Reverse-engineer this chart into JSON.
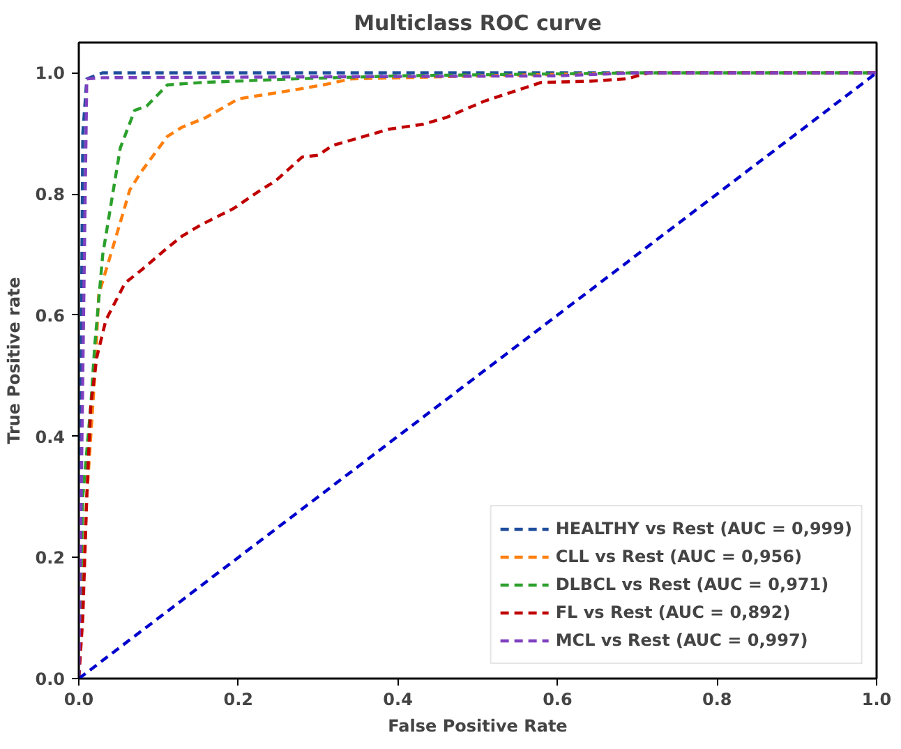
{
  "chart_data": {
    "type": "line",
    "title": "Multiclass ROC curve",
    "xlabel": "False Positive Rate",
    "ylabel": "True Positive rate",
    "xlim": [
      0,
      1
    ],
    "ylim": [
      0,
      1.05
    ],
    "xticks": [
      {
        "value": 0,
        "label": "0.0"
      },
      {
        "value": 0.2,
        "label": "0.2"
      },
      {
        "value": 0.4,
        "label": "0.4"
      },
      {
        "value": 0.6,
        "label": "0.6"
      },
      {
        "value": 0.8,
        "label": "0.8"
      },
      {
        "value": 1,
        "label": "1.0"
      }
    ],
    "yticks": [
      {
        "value": 0,
        "label": "0.0"
      },
      {
        "value": 0.2,
        "label": "0.2"
      },
      {
        "value": 0.4,
        "label": "0.4"
      },
      {
        "value": 0.6,
        "label": "0.6"
      },
      {
        "value": 0.8,
        "label": "0.8"
      },
      {
        "value": 1,
        "label": "1.0"
      }
    ],
    "grid": false,
    "legend": "bottom right",
    "line_style": "dashed",
    "marker": "none",
    "series": [
      {
        "name": "HEALTHY vs Rest (AUC = 0,999)",
        "color": "#1f4e9c",
        "x": [
          0,
          0.005,
          0.01,
          0.03,
          1
        ],
        "values": [
          0,
          0.9,
          0.99,
          1.0,
          1.0
        ]
      },
      {
        "name": "CLL vs Rest (AUC = 0,956)",
        "color": "#ff7f0e",
        "x": [
          0,
          0.01,
          0.02,
          0.025,
          0.052,
          0.064,
          0.079,
          0.111,
          0.129,
          0.159,
          0.2,
          0.271,
          0.306,
          0.342,
          0.5,
          0.7,
          1
        ],
        "values": [
          0,
          0.3,
          0.5,
          0.634,
          0.753,
          0.807,
          0.838,
          0.895,
          0.91,
          0.926,
          0.957,
          0.972,
          0.98,
          0.99,
          0.995,
          1.0,
          1.0
        ]
      },
      {
        "name": "DLBCL vs Rest (AUC = 0,971)",
        "color": "#2ca02c",
        "x": [
          0,
          0.005,
          0.015,
          0.02,
          0.03,
          0.052,
          0.07,
          0.085,
          0.111,
          0.153,
          0.27,
          0.4,
          0.7,
          1
        ],
        "values": [
          0,
          0.3,
          0.45,
          0.55,
          0.7,
          0.876,
          0.938,
          0.945,
          0.98,
          0.984,
          0.99,
          0.995,
          1.0,
          1.0
        ]
      },
      {
        "name": "FL vs Rest (AUC = 0,892)",
        "color": "#c00000",
        "x": [
          0,
          0.005,
          0.01,
          0.015,
          0.0225,
          0.034,
          0.058,
          0.079,
          0.111,
          0.129,
          0.153,
          0.194,
          0.224,
          0.247,
          0.28,
          0.3,
          0.318,
          0.389,
          0.431,
          0.46,
          0.49,
          0.508,
          0.579,
          0.638,
          0.686,
          0.715,
          1
        ],
        "values": [
          0,
          0.1,
          0.3,
          0.45,
          0.53,
          0.592,
          0.653,
          0.675,
          0.711,
          0.73,
          0.749,
          0.776,
          0.803,
          0.822,
          0.861,
          0.864,
          0.88,
          0.907,
          0.915,
          0.926,
          0.943,
          0.953,
          0.984,
          0.986,
          0.99,
          1.0,
          1.0
        ]
      },
      {
        "name": "MCL vs Rest (AUC = 0,997)",
        "color": "#7f3fbf",
        "x": [
          0,
          0.005,
          0.01,
          0.03,
          0.6,
          0.7,
          1
        ],
        "values": [
          0,
          0.5,
          0.99,
          0.992,
          0.995,
          1.0,
          1.0
        ]
      },
      {
        "color": "#0000cc",
        "x": [
          0,
          1
        ],
        "values": [
          0,
          1
        ]
      }
    ]
  }
}
